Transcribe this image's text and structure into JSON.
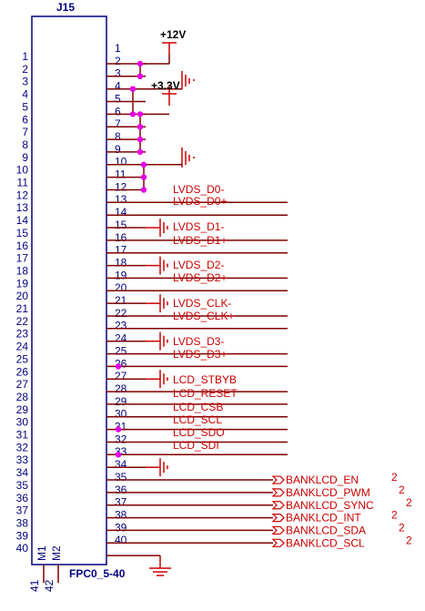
{
  "component": {
    "designator": "J15",
    "footprint": "FPC0_5-40",
    "mount_pins": [
      "M1",
      "M2"
    ],
    "mount_pin_numbers": [
      "41",
      "42"
    ]
  },
  "power": {
    "vcc12": "+12V",
    "vcc33": "+3.3V"
  },
  "pins_left": [
    "1",
    "2",
    "3",
    "4",
    "5",
    "6",
    "7",
    "8",
    "9",
    "10",
    "11",
    "12",
    "13",
    "14",
    "15",
    "16",
    "17",
    "18",
    "19",
    "20",
    "21",
    "22",
    "23",
    "24",
    "25",
    "26",
    "27",
    "28",
    "29",
    "30",
    "31",
    "32",
    "33",
    "34",
    "35",
    "36",
    "37",
    "38",
    "39",
    "40"
  ],
  "pins_right": [
    "1",
    "2",
    "3",
    "4",
    "5",
    "6",
    "7",
    "8",
    "9",
    "10",
    "11",
    "12",
    "13",
    "14",
    "15",
    "16",
    "17",
    "18",
    "19",
    "20",
    "21",
    "22",
    "23",
    "24",
    "25",
    "26",
    "27",
    "28",
    "29",
    "30",
    "31",
    "32",
    "33",
    "34",
    "35",
    "36",
    "37",
    "38",
    "39",
    "40"
  ],
  "nets": {
    "lvds_d0n": "LVDS_D0-",
    "lvds_d0p": "LVDS_D0+",
    "lvds_d1n": "LVDS_D1-",
    "lvds_d1p": "LVDS_D1+",
    "lvds_d2n": "LVDS_D2-",
    "lvds_d2p": "LVDS_D2+",
    "lvds_clkn": "LVDS_CLK-",
    "lvds_clkp": "LVDS_CLK+",
    "lvds_d3n": "LVDS_D3-",
    "lvds_d3p": "LVDS_D3+",
    "lcd_stbyb": "LCD_STBYB",
    "lcd_reset": "LCD_RESET",
    "lcd_csb": "LCD_CSB",
    "lcd_scl": "LCD_SCL",
    "lcd_sdo": "LCD_SDO",
    "lcd_sdi": "LCD_SDI"
  },
  "ports": [
    {
      "label": "BANKLCD_EN",
      "sheet": "2"
    },
    {
      "label": "BANKLCD_PWM",
      "sheet": "2"
    },
    {
      "label": "BANKLCD_SYNC",
      "sheet": "2"
    },
    {
      "label": "BANKLCD_INT",
      "sheet": "2"
    },
    {
      "label": "BANKLCD_SDA",
      "sheet": "2"
    },
    {
      "label": "BANKLCD_SCL",
      "sheet": "2"
    }
  ],
  "colors": {
    "body": "#00007f",
    "wire": "#7f0000",
    "power": "#cc0000",
    "junction": "#e600e6",
    "port": "#cc0000"
  }
}
